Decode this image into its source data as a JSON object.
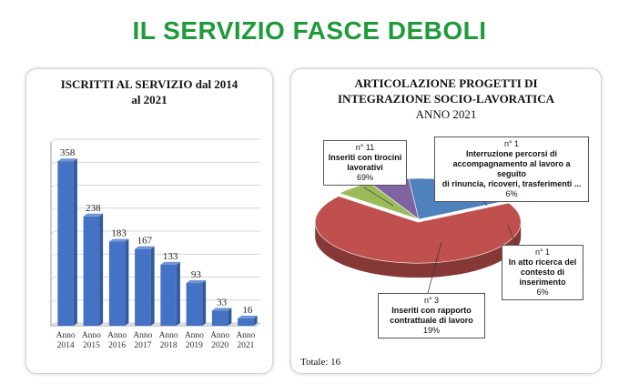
{
  "page": {
    "title": "IL SERVIZIO FASCE DEBOLI"
  },
  "chart_data": [
    {
      "type": "bar",
      "title": "ISCRITTI AL SERVIZIO dal 2014 al 2021",
      "title_line1": "ISCRITTI AL SERVIZIO dal 2014",
      "title_line2": "al 2021",
      "categories": [
        "Anno 2014",
        "Anno 2015",
        "Anno 2016",
        "Anno 2017",
        "Anno 2018",
        "Anno 2019",
        "Anno 2020",
        "Anno 2021"
      ],
      "category_lines": [
        [
          "Anno",
          "2014"
        ],
        [
          "Anno",
          "2015"
        ],
        [
          "Anno",
          "2016"
        ],
        [
          "Anno",
          "2017"
        ],
        [
          "Anno",
          "2018"
        ],
        [
          "Anno",
          "2019"
        ],
        [
          "Anno",
          "2020"
        ],
        [
          "Anno",
          "2021"
        ]
      ],
      "values": [
        358,
        238,
        183,
        167,
        133,
        93,
        33,
        16
      ],
      "ylim": [
        0,
        400
      ],
      "grid": true,
      "colors": {
        "bar": "#4472c4",
        "bar_dark": "#2b4f8f",
        "bar_side": "#34589b"
      }
    },
    {
      "type": "pie",
      "title_line1": "ARTICOLAZIONE PROGETTI DI",
      "title_line2": "INTEGRAZIONE SOCIO-LAVORATICA",
      "subtitle": "ANNO 2021",
      "slices": [
        {
          "count_label": "n° 11",
          "label_lines": [
            "Inseriti con tirocini",
            "lavorativi"
          ],
          "value": 11,
          "percent": "69%",
          "color": "#c0504d"
        },
        {
          "count_label": "n° 1",
          "label_lines": [
            "Interruzione percorsi di",
            "accompagnamento al lavoro a seguito",
            "di rinuncia, ricoveri, trasferimenti ..."
          ],
          "value": 1,
          "percent": "6%",
          "color": "#9bbb59"
        },
        {
          "count_label": "n° 1",
          "label_lines": [
            "In atto ricerca del",
            "contesto di",
            "inserimento"
          ],
          "value": 1,
          "percent": "6%",
          "color": "#8064a2"
        },
        {
          "count_label": "n° 3",
          "label_lines": [
            "Inseriti con rapporto",
            "contrattuale di lavoro"
          ],
          "value": 3,
          "percent": "19%",
          "color": "#4f81bd"
        }
      ],
      "total_label": "Totale:",
      "total_value": "16"
    }
  ]
}
